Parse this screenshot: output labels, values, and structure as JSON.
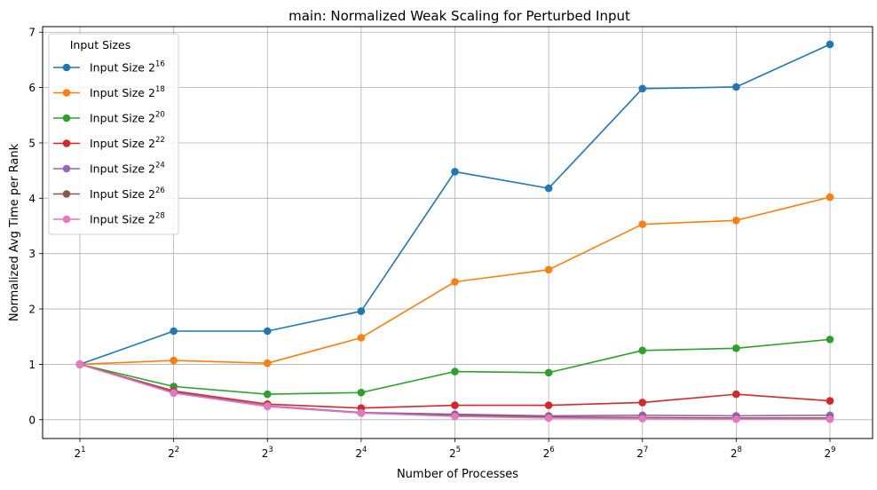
{
  "chart_data": {
    "type": "line",
    "title": "main: Normalized Weak Scaling for Perturbed Input",
    "xlabel": "Number of Processes",
    "ylabel": "Normalized Avg Time per Rank",
    "x_base": "2",
    "x_exponents": [
      "1",
      "2",
      "3",
      "4",
      "5",
      "6",
      "7",
      "8",
      "9"
    ],
    "x": [
      2,
      4,
      8,
      16,
      32,
      64,
      128,
      256,
      512
    ],
    "x_scale": "log2",
    "ylim": [
      -0.34,
      7.1
    ],
    "y_ticks": [
      0,
      1,
      2,
      3,
      4,
      5,
      6,
      7
    ],
    "grid": true,
    "legend": {
      "title": "Input Sizes",
      "placement": "top-left"
    },
    "series": [
      {
        "name": "Input Size 2",
        "exp": "16",
        "color": "#1f77b4",
        "values": [
          1.0,
          1.6,
          1.6,
          1.96,
          4.48,
          4.18,
          5.98,
          6.01,
          6.78
        ]
      },
      {
        "name": "Input Size 2",
        "exp": "18",
        "color": "#ff7f0e",
        "values": [
          1.0,
          1.07,
          1.02,
          1.48,
          2.49,
          2.71,
          3.53,
          3.6,
          4.02
        ]
      },
      {
        "name": "Input Size 2",
        "exp": "20",
        "color": "#2ca02c",
        "values": [
          1.0,
          0.6,
          0.46,
          0.49,
          0.87,
          0.85,
          1.25,
          1.29,
          1.45
        ]
      },
      {
        "name": "Input Size 2",
        "exp": "22",
        "color": "#d62728",
        "values": [
          1.0,
          0.52,
          0.28,
          0.21,
          0.26,
          0.26,
          0.31,
          0.46,
          0.34
        ]
      },
      {
        "name": "Input Size 2",
        "exp": "24",
        "color": "#9467bd",
        "values": [
          1.0,
          0.5,
          0.25,
          0.13,
          0.1,
          0.07,
          0.08,
          0.07,
          0.08
        ]
      },
      {
        "name": "Input Size 2",
        "exp": "26",
        "color": "#8c564b",
        "values": [
          1.0,
          0.49,
          0.24,
          0.12,
          0.08,
          0.05,
          0.04,
          0.03,
          0.03
        ]
      },
      {
        "name": "Input Size 2",
        "exp": "28",
        "color": "#e377c2",
        "values": [
          1.0,
          0.48,
          0.24,
          0.12,
          0.06,
          0.03,
          0.02,
          0.01,
          0.01
        ]
      }
    ]
  }
}
